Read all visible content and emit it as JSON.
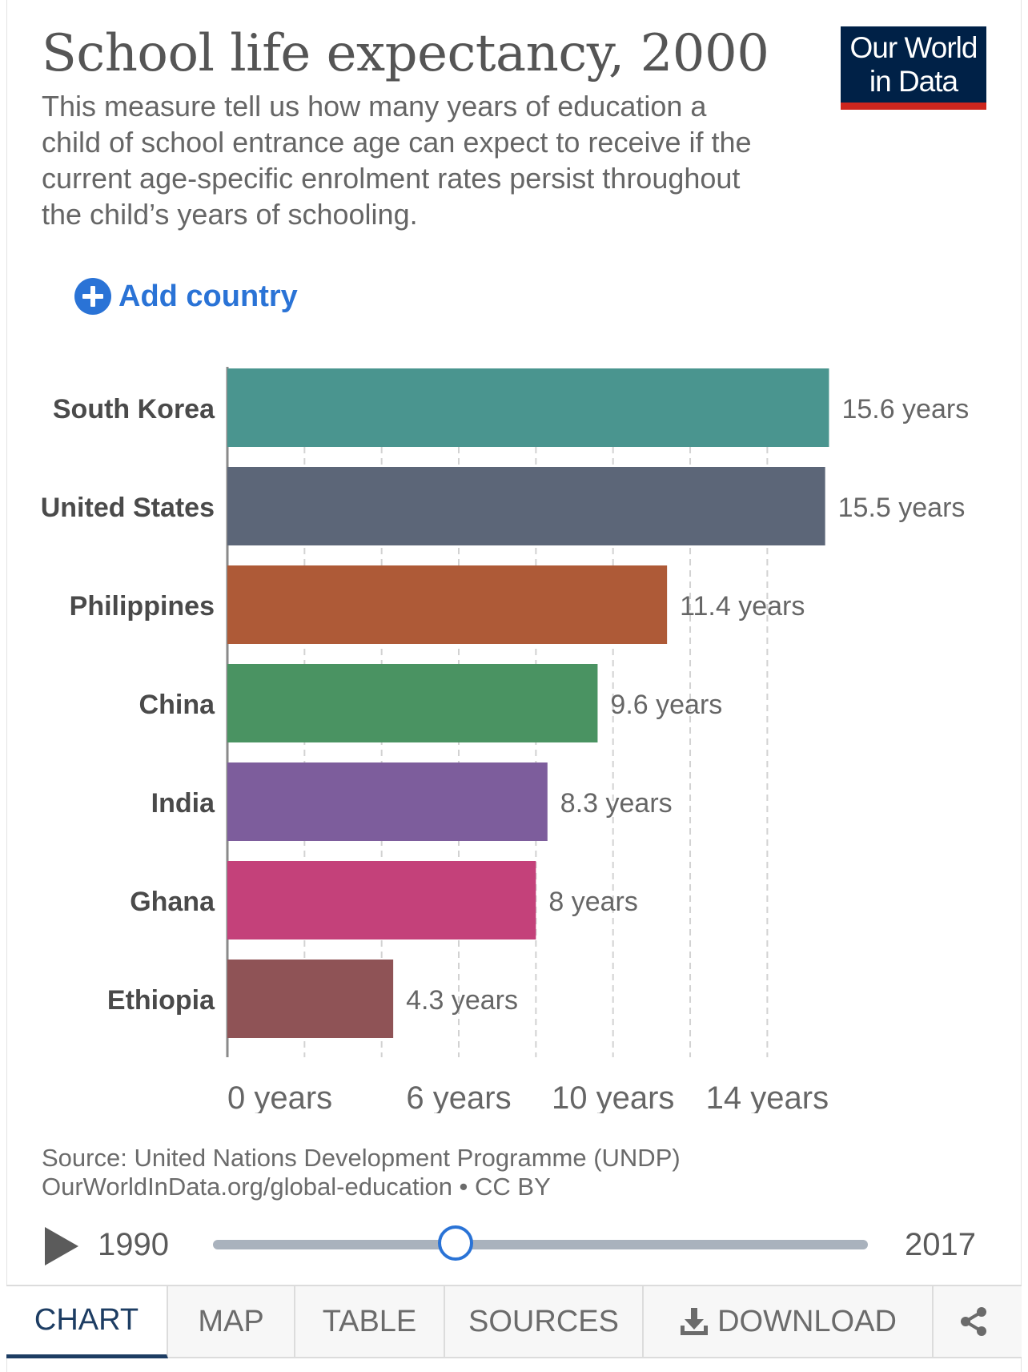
{
  "header": {
    "title": "School life expectancy, 2000",
    "subtitle": "This measure tell us how many years of education a child of school entrance age can expect to receive if the current age-specific enrolment rates persist throughout the child’s years of schooling.",
    "logo_text": "Our World\nin Data",
    "logo_bg": "#002147",
    "logo_accent": "#ce261e"
  },
  "controls": {
    "add_country_label": "Add country",
    "add_icon": "plus-circle-icon",
    "accent": "#2a73d6"
  },
  "chart_data": {
    "type": "bar",
    "orientation": "horizontal",
    "categories": [
      "South Korea",
      "United States",
      "Philippines",
      "China",
      "India",
      "Ghana",
      "Ethiopia"
    ],
    "values": [
      15.6,
      15.5,
      11.4,
      9.6,
      8.3,
      8,
      4.3
    ],
    "value_labels": [
      "15.6 years",
      "15.5 years",
      "11.4 years",
      "9.6 years",
      "8.3 years",
      "8 years",
      "4.3 years"
    ],
    "colors": [
      "#4a958f",
      "#5c6678",
      "#ae5a37",
      "#4a9362",
      "#7d5d9c",
      "#c4417a",
      "#8f5356"
    ],
    "x_ticks": [
      0,
      6,
      10,
      14
    ],
    "x_tick_labels": [
      "0 years",
      "6 years",
      "10 years",
      "14 years"
    ],
    "grid_values": [
      2,
      4,
      6,
      8,
      10,
      12,
      14
    ],
    "xlim": [
      0,
      15.6
    ],
    "grid": true
  },
  "footer": {
    "source_line": "Source: United Nations Development Programme (UNDP)",
    "url_line": "OurWorldInData.org/global-education • CC BY"
  },
  "timeline": {
    "start_year": "1990",
    "end_year": "2017",
    "current_year": 2000,
    "play_icon": "play-icon"
  },
  "tabs": [
    {
      "label": "CHART",
      "active": true
    },
    {
      "label": "MAP",
      "active": false
    },
    {
      "label": "TABLE",
      "active": false
    },
    {
      "label": "SOURCES",
      "active": false
    },
    {
      "label": "DOWNLOAD",
      "active": false,
      "icon": "download-icon"
    },
    {
      "label": "",
      "active": false,
      "icon": "share-icon"
    }
  ]
}
